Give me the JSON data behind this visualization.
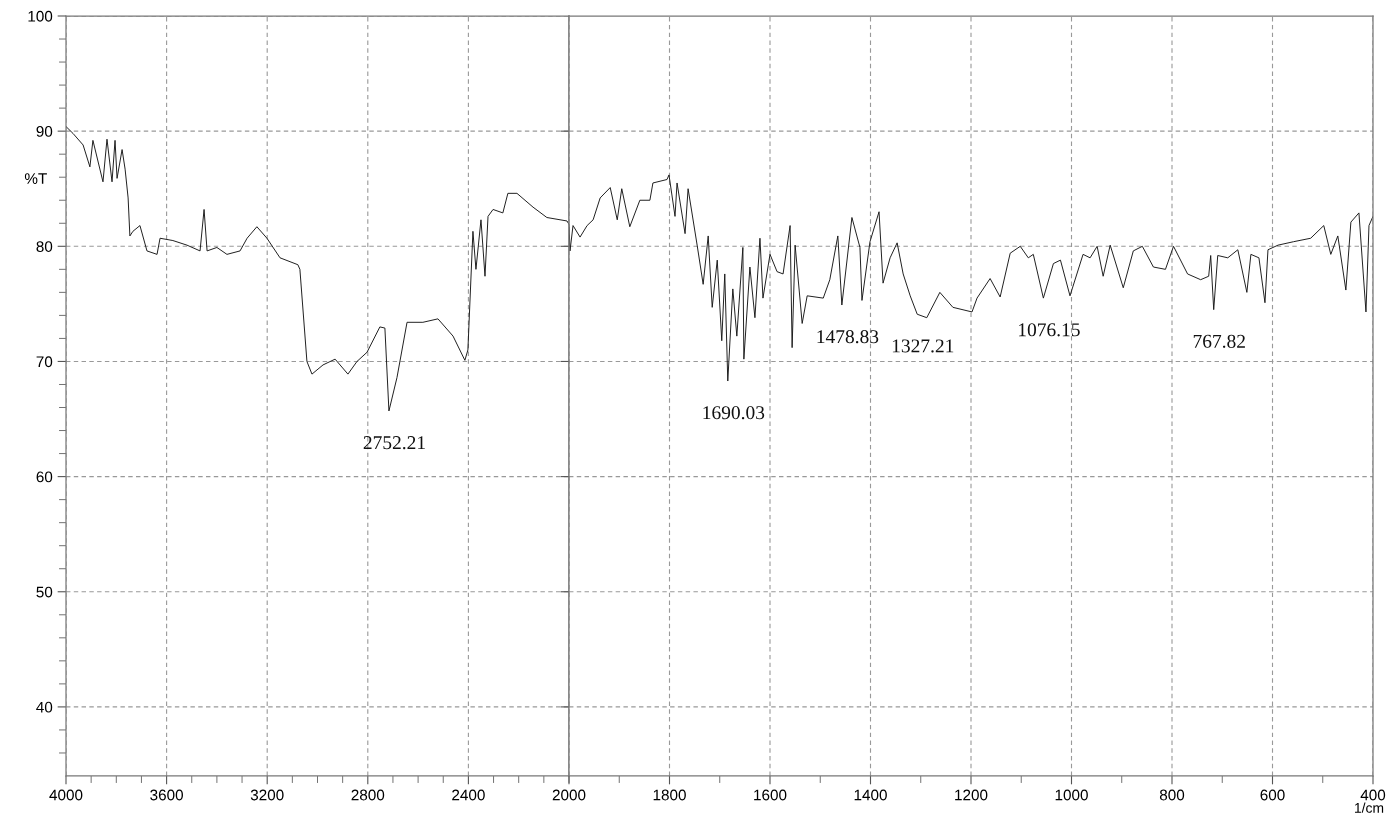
{
  "chart_data": [
    {
      "type": "line",
      "ylabel": "%T",
      "xlim": [
        4000,
        2000
      ],
      "ylim": [
        34,
        100
      ],
      "xticks": [
        4000,
        3600,
        3200,
        2800,
        2400,
        {
          "value": 2000,
          "label": null
        },
        {
          "value": 3900,
          "label": null
        },
        {
          "value": 3800,
          "label": null
        },
        {
          "value": 3700,
          "label": null
        },
        {
          "value": 3500,
          "label": null
        },
        {
          "value": 3400,
          "label": null
        },
        {
          "value": 3300,
          "label": null
        },
        {
          "value": 3100,
          "label": null
        },
        {
          "value": 3000,
          "label": null
        },
        {
          "value": 2900,
          "label": null
        },
        {
          "value": 2700,
          "label": null
        },
        {
          "value": 2600,
          "label": null
        },
        {
          "value": 2500,
          "label": null
        },
        {
          "value": 2300,
          "label": null
        },
        {
          "value": 2200,
          "label": null
        },
        {
          "value": 2100,
          "label": null
        }
      ],
      "yticks": [
        40,
        50,
        60,
        70,
        80,
        90,
        100,
        {
          "value": 36,
          "label": null
        },
        {
          "value": 38,
          "label": null
        },
        {
          "value": 42,
          "label": null
        },
        {
          "value": 44,
          "label": null
        },
        {
          "value": 46,
          "label": null
        },
        {
          "value": 48,
          "label": null
        },
        {
          "value": 52,
          "label": null
        },
        {
          "value": 54,
          "label": null
        },
        {
          "value": 56,
          "label": null
        },
        {
          "value": 58,
          "label": null
        },
        {
          "value": 62,
          "label": null
        },
        {
          "value": 64,
          "label": null
        },
        {
          "value": 66,
          "label": null
        },
        {
          "value": 68,
          "label": null
        },
        {
          "value": 72,
          "label": null
        },
        {
          "value": 74,
          "label": null
        },
        {
          "value": 76,
          "label": null
        },
        {
          "value": 78,
          "label": null
        },
        {
          "value": 82,
          "label": null
        },
        {
          "value": 84,
          "label": null
        },
        {
          "value": 86,
          "label": null
        },
        {
          "value": 88,
          "label": null
        },
        {
          "value": 92,
          "label": null
        },
        {
          "value": 94,
          "label": null
        },
        {
          "value": 96,
          "label": null
        },
        {
          "value": 98,
          "label": null
        }
      ],
      "grid": true,
      "line_style": "solid",
      "marker": "none",
      "series": [
        {
          "color": "#1a1a1a",
          "x": [
            4000,
            3972,
            3932,
            3905,
            3893,
            3853,
            3837,
            3817,
            3805,
            3797,
            3777,
            3765,
            3753,
            3746,
            3734,
            3706,
            3678,
            3638,
            3626,
            3575,
            3519,
            3467,
            3451,
            3439,
            3400,
            3360,
            3308,
            3280,
            3241,
            3201,
            3149,
            3078,
            3070,
            3042,
            3022,
            2978,
            2930,
            2879,
            2843,
            2803,
            2752,
            2732,
            2716,
            2684,
            2644,
            2581,
            2521,
            2461,
            2414,
            2402,
            2382,
            2370,
            2350,
            2334,
            2322,
            2302,
            2263,
            2243,
            2207,
            2143,
            2088,
            2008,
            2000
          ],
          "values": [
            90.4,
            89.8,
            88.8,
            86.9,
            89.2,
            85.6,
            89.3,
            85.6,
            89.2,
            85.9,
            88.4,
            86.7,
            84.2,
            80.9,
            81.3,
            81.8,
            79.6,
            79.3,
            80.7,
            80.5,
            80.1,
            79.6,
            83.2,
            79.6,
            79.9,
            79.3,
            79.6,
            80.7,
            81.7,
            80.7,
            79.0,
            78.4,
            78.0,
            70.0,
            68.9,
            69.7,
            70.2,
            68.9,
            70.0,
            70.8,
            73.0,
            72.9,
            65.7,
            68.6,
            73.4,
            73.4,
            73.7,
            72.2,
            70.1,
            71.0,
            81.3,
            78.0,
            82.3,
            77.4,
            82.6,
            83.2,
            82.9,
            84.6,
            84.6,
            83.4,
            82.5,
            82.2,
            81.9
          ]
        }
      ],
      "annotations": [
        {
          "text": "2752.21",
          "x": 2716,
          "y": 65.7
        }
      ]
    },
    {
      "type": "line",
      "xlabel": "1/cm",
      "xlim": [
        2000,
        400
      ],
      "ylim": [
        34,
        100
      ],
      "tick_labels": "x",
      "xticks": [
        2000,
        1600,
        1200,
        800,
        400,
        1800,
        1400,
        1000,
        600,
        {
          "value": 1900,
          "label": null
        },
        {
          "value": 1700,
          "label": null
        },
        {
          "value": 1500,
          "label": null
        },
        {
          "value": 1300,
          "label": null
        },
        {
          "value": 1100,
          "label": null
        },
        {
          "value": 900,
          "label": null
        },
        {
          "value": 700,
          "label": null
        },
        {
          "value": 500,
          "label": null
        }
      ],
      "yticks": [
        40,
        50,
        60,
        70,
        80,
        90
      ],
      "grid": true,
      "line_style": "solid",
      "marker": "none",
      "series": [
        {
          "color": "#1a1a1a",
          "x": [
            2000,
            1998,
            1992,
            1978,
            1964,
            1952,
            1938,
            1918,
            1904,
            1895,
            1879,
            1859,
            1839,
            1833,
            1805,
            1801,
            1789,
            1785,
            1769,
            1763,
            1745,
            1733,
            1723,
            1715,
            1705,
            1696,
            1690,
            1684,
            1674,
            1666,
            1654,
            1652,
            1640,
            1630,
            1620,
            1614,
            1600,
            1586,
            1574,
            1560,
            1556,
            1550,
            1536,
            1526,
            1494,
            1481,
            1465,
            1457,
            1437,
            1421,
            1417,
            1401,
            1383,
            1375,
            1361,
            1347,
            1335,
            1321,
            1307,
            1288,
            1262,
            1236,
            1198,
            1188,
            1162,
            1142,
            1122,
            1102,
            1086,
            1076,
            1056,
            1036,
            1022,
            1003,
            977,
            963,
            949,
            937,
            923,
            897,
            877,
            859,
            837,
            813,
            797,
            769,
            743,
            727,
            723,
            717,
            709,
            689,
            669,
            651,
            643,
            627,
            615,
            609,
            589,
            558,
            524,
            498,
            484,
            470,
            454,
            444,
            428,
            414,
            408,
            400
          ],
          "values": [
            81.9,
            79.6,
            81.8,
            80.8,
            81.8,
            82.3,
            84.2,
            85.1,
            82.3,
            85.0,
            81.7,
            84.0,
            84.0,
            85.5,
            85.8,
            86.2,
            82.6,
            85.5,
            81.1,
            85.0,
            80.1,
            76.7,
            80.9,
            74.7,
            78.8,
            71.8,
            77.6,
            68.3,
            76.3,
            72.2,
            79.9,
            70.2,
            78.2,
            73.8,
            80.7,
            75.5,
            79.3,
            77.8,
            77.6,
            81.8,
            71.2,
            80.1,
            73.3,
            75.7,
            75.5,
            77.1,
            80.9,
            74.9,
            82.5,
            79.9,
            75.3,
            80.4,
            83.0,
            76.8,
            79.0,
            80.3,
            77.6,
            75.7,
            74.1,
            73.8,
            76.0,
            74.7,
            74.3,
            75.5,
            77.2,
            75.6,
            79.4,
            80.0,
            79.0,
            79.3,
            75.5,
            78.5,
            78.8,
            75.7,
            79.3,
            79.0,
            80.0,
            77.4,
            80.1,
            76.4,
            79.6,
            80.0,
            78.2,
            78.0,
            80.0,
            77.6,
            77.1,
            77.4,
            79.2,
            74.5,
            79.2,
            79.0,
            79.7,
            76.0,
            79.3,
            79.0,
            75.1,
            79.7,
            80.1,
            80.4,
            80.7,
            81.8,
            79.3,
            80.9,
            76.2,
            82.1,
            82.9,
            74.3,
            81.8,
            82.6
          ]
        }
      ],
      "annotations": [
        {
          "text": "1690.03",
          "x": 1684,
          "y": 68.3
        },
        {
          "text": "1478.83",
          "x": 1457,
          "y": 74.9
        },
        {
          "text": "1327.21",
          "x": 1307,
          "y": 74.1
        },
        {
          "text": "1076.15",
          "x": 1056,
          "y": 75.5
        },
        {
          "text": "767.82",
          "x": 717,
          "y": 74.5
        }
      ]
    }
  ]
}
